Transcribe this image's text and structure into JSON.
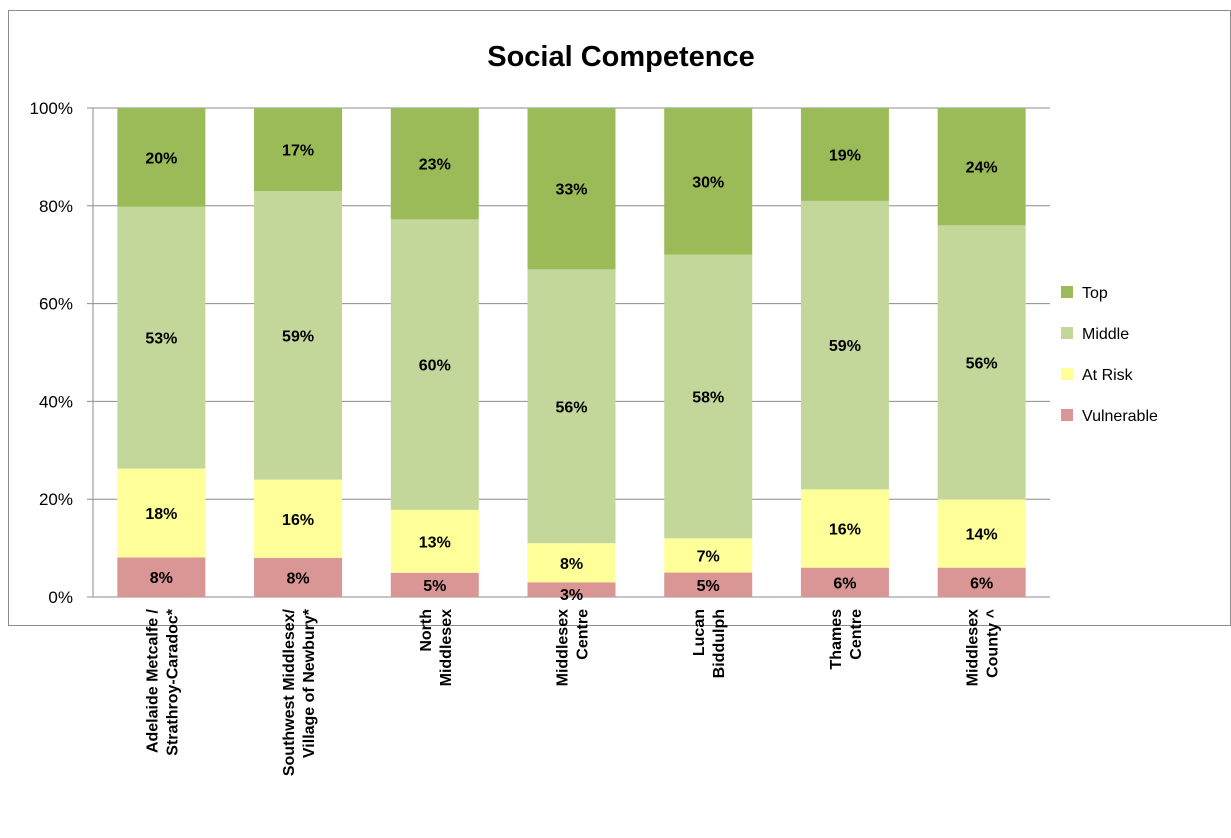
{
  "chart_data": {
    "type": "bar",
    "stacked": true,
    "title": "Social Competence",
    "xlabel": "",
    "ylabel": "",
    "ylim": [
      0,
      100
    ],
    "y_ticks": [
      "0%",
      "20%",
      "40%",
      "60%",
      "80%",
      "100%"
    ],
    "grid": true,
    "legend_position": "right",
    "categories": [
      [
        "Adelaide Metcalfe /",
        "Strathroy-Caradoc*"
      ],
      [
        "Southwest Middlesex/",
        "Village of Newbury*"
      ],
      [
        "North",
        "Middlesex"
      ],
      [
        "Middlesex",
        "Centre"
      ],
      [
        "Lucan",
        "Biddulph"
      ],
      [
        "Thames",
        "Centre"
      ],
      [
        "Middlesex",
        "County ^"
      ]
    ],
    "series": [
      {
        "name": "Vulnerable",
        "color": "#d99694",
        "values": [
          8,
          8,
          5,
          3,
          5,
          6,
          6
        ],
        "labels": [
          "8%",
          "8%",
          "5%",
          "3%",
          "5%",
          "6%",
          "6%"
        ]
      },
      {
        "name": "At Risk",
        "color": "#ffff99",
        "values": [
          18,
          16,
          13,
          8,
          7,
          16,
          14
        ],
        "labels": [
          "18%",
          "16%",
          "13%",
          "8%",
          "7%",
          "16%",
          "14%"
        ]
      },
      {
        "name": "Middle",
        "color": "#c4d79b",
        "values": [
          53,
          59,
          60,
          56,
          58,
          59,
          56
        ],
        "labels": [
          "53%",
          "59%",
          "60%",
          "56%",
          "58%",
          "59%",
          "56%"
        ]
      },
      {
        "name": "Top",
        "color": "#9bbb59",
        "values": [
          20,
          17,
          23,
          33,
          30,
          19,
          24
        ],
        "labels": [
          "20%",
          "17%",
          "23%",
          "33%",
          "30%",
          "19%",
          "24%"
        ]
      }
    ],
    "legend_order": [
      "Top",
      "Middle",
      "At Risk",
      "Vulnerable"
    ]
  }
}
